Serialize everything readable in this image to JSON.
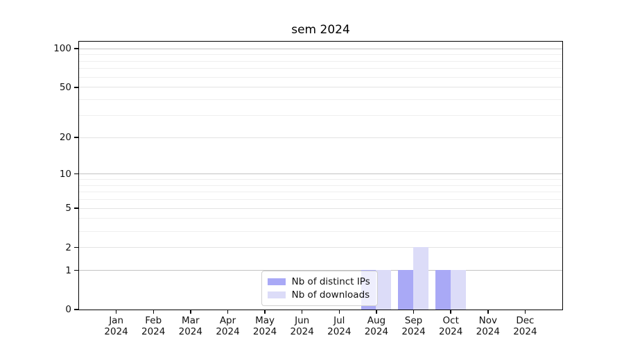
{
  "chart_data": {
    "type": "bar",
    "title": "sem 2024",
    "categories": [
      "Jan",
      "Feb",
      "Mar",
      "Apr",
      "May",
      "Jun",
      "Jul",
      "Aug",
      "Sep",
      "Oct",
      "Nov",
      "Dec"
    ],
    "year_label": "2024",
    "series": [
      {
        "name": "Nb of distinct IPs",
        "color": "#a9a9f6",
        "values": [
          0,
          0,
          0,
          0,
          0,
          0,
          0,
          1,
          1,
          1,
          0,
          0
        ]
      },
      {
        "name": "Nb of downloads",
        "color": "#dcdcf8",
        "values": [
          0,
          0,
          0,
          0,
          0,
          0,
          0,
          1,
          2,
          1,
          0,
          0
        ]
      }
    ],
    "yscale": "log10(1+y)",
    "ylim": [
      0,
      113.3
    ],
    "yticks": [
      0,
      1,
      2,
      5,
      10,
      20,
      50,
      100
    ],
    "gridlines_decade": [
      1,
      10,
      100
    ],
    "gridlines_mid": [
      2,
      5,
      20,
      50
    ],
    "gridlines_minor": [
      3,
      4,
      6,
      7,
      8,
      9,
      30,
      40,
      60,
      70,
      80,
      90
    ],
    "grid": true,
    "legend_position": "lower center-left inside plot",
    "colors": {
      "spine": "#000000",
      "grid_decade": "#c2c2c2",
      "grid_mid": "#e3e3e3",
      "grid_minor": "#efefef",
      "background": "#ffffff"
    }
  }
}
